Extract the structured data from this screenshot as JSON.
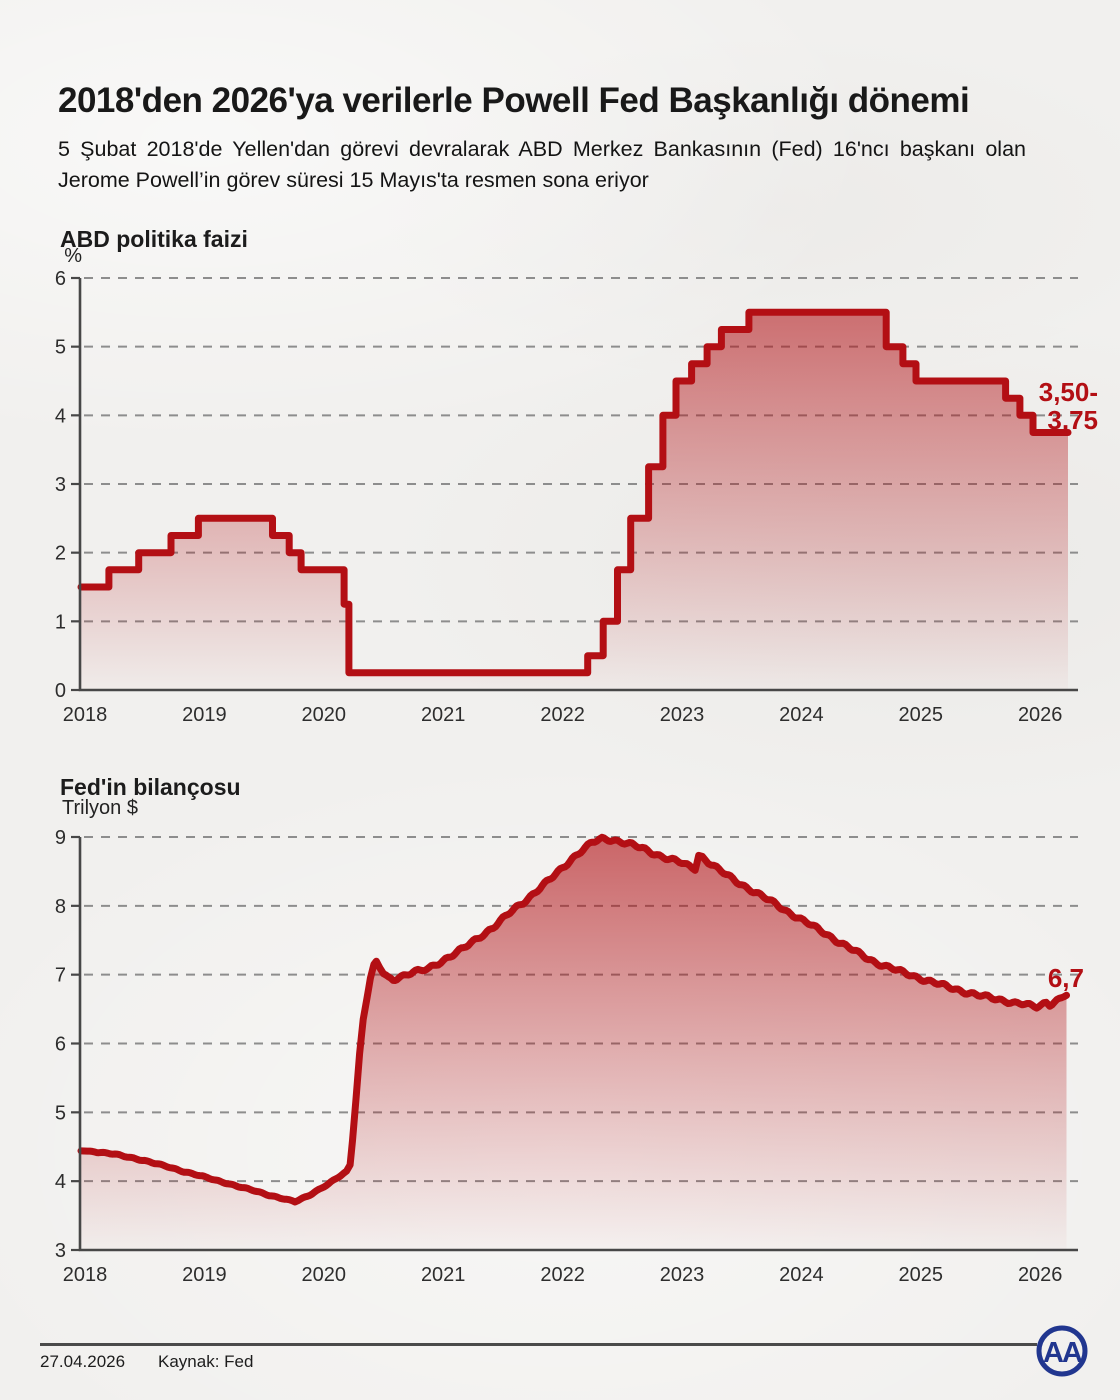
{
  "header": {
    "title": "2018'den 2026'ya verilerle Powell Fed Başkanlığı dönemi",
    "subtitle": "5 Şubat 2018'de Yellen'dan görevi devralarak ABD Merkez Bankasının (Fed) 16'ncı başkanı olan Jerome Powell’in görev süresi 15 Mayıs'ta resmen sona eriyor"
  },
  "footer": {
    "date": "27.04.2026",
    "source": "Kaynak: Fed",
    "logo_text": "AA"
  },
  "colors": {
    "line": "#b30f14",
    "end_label": "#b30f14",
    "axis": "#474747",
    "tick": "#474747",
    "grid": "#8d8d8d",
    "fill_top": "rgba(177,15,20,0.62)",
    "fill_bottom": "rgba(177,15,20,0.02)",
    "logo_blue": "#21368f"
  },
  "chart_data": [
    {
      "type": "step-area",
      "title": "ABD politika faizi",
      "ylabel": "%",
      "xlabel": "",
      "ylim": [
        0,
        6
      ],
      "xlim": [
        2018,
        2026.25
      ],
      "yticks": [
        0,
        1,
        2,
        3,
        4,
        5,
        6
      ],
      "xticks": [
        2018,
        2019,
        2020,
        2021,
        2022,
        2023,
        2024,
        2025,
        2026
      ],
      "grid": true,
      "legend": false,
      "end_label_lines": [
        "3,50-",
        "3,75"
      ],
      "points": [
        [
          2018.0,
          1.5
        ],
        [
          2018.2,
          1.75
        ],
        [
          2018.45,
          2.0
        ],
        [
          2018.72,
          2.25
        ],
        [
          2018.95,
          2.5
        ],
        [
          2019.57,
          2.25
        ],
        [
          2019.71,
          2.0
        ],
        [
          2019.81,
          1.75
        ],
        [
          2020.17,
          1.25
        ],
        [
          2020.21,
          0.25
        ],
        [
          2022.21,
          0.5
        ],
        [
          2022.34,
          1.0
        ],
        [
          2022.46,
          1.75
        ],
        [
          2022.57,
          2.5
        ],
        [
          2022.72,
          3.25
        ],
        [
          2022.84,
          4.0
        ],
        [
          2022.95,
          4.5
        ],
        [
          2023.08,
          4.75
        ],
        [
          2023.21,
          5.0
        ],
        [
          2023.33,
          5.25
        ],
        [
          2023.56,
          5.5
        ],
        [
          2024.71,
          5.0
        ],
        [
          2024.85,
          4.75
        ],
        [
          2024.96,
          4.5
        ],
        [
          2025.71,
          4.25
        ],
        [
          2025.83,
          4.0
        ],
        [
          2025.94,
          3.75
        ],
        [
          2026.22,
          3.75
        ]
      ]
    },
    {
      "type": "area",
      "title": "Fed'in bilançosu",
      "ylabel": "Trilyon $",
      "xlabel": "",
      "ylim": [
        3,
        9
      ],
      "xlim": [
        2018,
        2026.25
      ],
      "yticks": [
        3,
        4,
        5,
        6,
        7,
        8,
        9
      ],
      "xticks": [
        2018,
        2019,
        2020,
        2021,
        2022,
        2023,
        2024,
        2025,
        2026
      ],
      "grid": true,
      "legend": false,
      "end_label_lines": [
        "6,7"
      ],
      "points": [
        [
          2018.0,
          4.44
        ],
        [
          2018.08,
          4.43
        ],
        [
          2018.17,
          4.41
        ],
        [
          2018.25,
          4.39
        ],
        [
          2018.33,
          4.36
        ],
        [
          2018.42,
          4.33
        ],
        [
          2018.5,
          4.3
        ],
        [
          2018.58,
          4.26
        ],
        [
          2018.67,
          4.22
        ],
        [
          2018.75,
          4.18
        ],
        [
          2018.83,
          4.14
        ],
        [
          2018.92,
          4.1
        ],
        [
          2019.0,
          4.06
        ],
        [
          2019.08,
          4.02
        ],
        [
          2019.17,
          3.98
        ],
        [
          2019.25,
          3.94
        ],
        [
          2019.33,
          3.9
        ],
        [
          2019.42,
          3.86
        ],
        [
          2019.5,
          3.82
        ],
        [
          2019.58,
          3.78
        ],
        [
          2019.65,
          3.75
        ],
        [
          2019.71,
          3.72
        ],
        [
          2019.76,
          3.7
        ],
        [
          2019.81,
          3.74
        ],
        [
          2019.88,
          3.8
        ],
        [
          2019.96,
          3.88
        ],
        [
          2020.04,
          3.96
        ],
        [
          2020.1,
          4.03
        ],
        [
          2020.15,
          4.09
        ],
        [
          2020.19,
          4.14
        ],
        [
          2020.22,
          4.24
        ],
        [
          2020.24,
          4.6
        ],
        [
          2020.27,
          5.2
        ],
        [
          2020.3,
          5.85
        ],
        [
          2020.33,
          6.35
        ],
        [
          2020.36,
          6.65
        ],
        [
          2020.39,
          6.95
        ],
        [
          2020.42,
          7.12
        ],
        [
          2020.44,
          7.17
        ],
        [
          2020.47,
          7.1
        ],
        [
          2020.5,
          7.02
        ],
        [
          2020.54,
          6.95
        ],
        [
          2020.58,
          6.93
        ],
        [
          2020.63,
          6.97
        ],
        [
          2020.69,
          7.0
        ],
        [
          2020.75,
          7.04
        ],
        [
          2020.81,
          7.05
        ],
        [
          2020.88,
          7.09
        ],
        [
          2020.94,
          7.15
        ],
        [
          2021.0,
          7.21
        ],
        [
          2021.08,
          7.29
        ],
        [
          2021.17,
          7.38
        ],
        [
          2021.25,
          7.48
        ],
        [
          2021.33,
          7.58
        ],
        [
          2021.42,
          7.69
        ],
        [
          2021.5,
          7.81
        ],
        [
          2021.58,
          7.93
        ],
        [
          2021.67,
          8.05
        ],
        [
          2021.75,
          8.17
        ],
        [
          2021.83,
          8.29
        ],
        [
          2021.92,
          8.42
        ],
        [
          2022.0,
          8.55
        ],
        [
          2022.08,
          8.69
        ],
        [
          2022.17,
          8.82
        ],
        [
          2022.25,
          8.92
        ],
        [
          2022.33,
          8.97
        ],
        [
          2022.42,
          8.96
        ],
        [
          2022.5,
          8.93
        ],
        [
          2022.58,
          8.89
        ],
        [
          2022.67,
          8.83
        ],
        [
          2022.75,
          8.77
        ],
        [
          2022.83,
          8.72
        ],
        [
          2022.92,
          8.67
        ],
        [
          2023.0,
          8.62
        ],
        [
          2023.06,
          8.57
        ],
        [
          2023.11,
          8.54
        ],
        [
          2023.14,
          8.74
        ],
        [
          2023.17,
          8.71
        ],
        [
          2023.22,
          8.64
        ],
        [
          2023.29,
          8.55
        ],
        [
          2023.37,
          8.45
        ],
        [
          2023.46,
          8.35
        ],
        [
          2023.54,
          8.27
        ],
        [
          2023.62,
          8.19
        ],
        [
          2023.71,
          8.1
        ],
        [
          2023.79,
          8.02
        ],
        [
          2023.87,
          7.93
        ],
        [
          2023.95,
          7.85
        ],
        [
          2024.04,
          7.76
        ],
        [
          2024.12,
          7.68
        ],
        [
          2024.21,
          7.59
        ],
        [
          2024.29,
          7.5
        ],
        [
          2024.37,
          7.42
        ],
        [
          2024.46,
          7.33
        ],
        [
          2024.54,
          7.25
        ],
        [
          2024.62,
          7.18
        ],
        [
          2024.71,
          7.12
        ],
        [
          2024.79,
          7.07
        ],
        [
          2024.87,
          7.02
        ],
        [
          2024.96,
          6.97
        ],
        [
          2025.04,
          6.92
        ],
        [
          2025.12,
          6.88
        ],
        [
          2025.21,
          6.83
        ],
        [
          2025.29,
          6.79
        ],
        [
          2025.37,
          6.75
        ],
        [
          2025.46,
          6.71
        ],
        [
          2025.54,
          6.68
        ],
        [
          2025.62,
          6.65
        ],
        [
          2025.71,
          6.62
        ],
        [
          2025.79,
          6.59
        ],
        [
          2025.87,
          6.57
        ],
        [
          2025.93,
          6.54
        ],
        [
          2025.97,
          6.53
        ],
        [
          2026.01,
          6.56
        ],
        [
          2026.05,
          6.6
        ],
        [
          2026.08,
          6.57
        ],
        [
          2026.12,
          6.61
        ],
        [
          2026.16,
          6.65
        ],
        [
          2026.2,
          6.68
        ],
        [
          2026.22,
          6.7
        ]
      ]
    }
  ]
}
